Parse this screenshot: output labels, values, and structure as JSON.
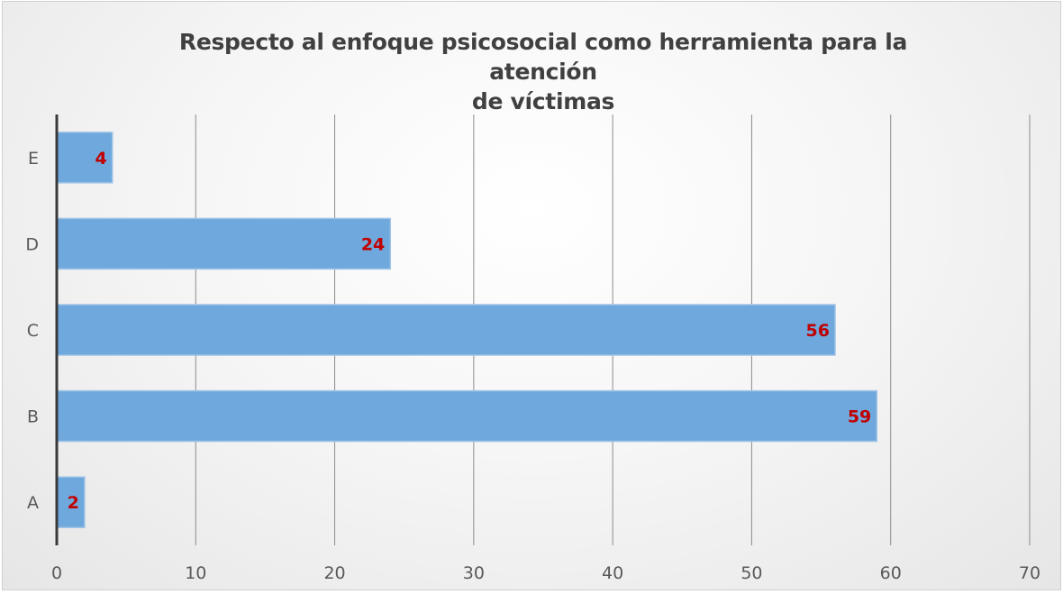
{
  "chart_data": {
    "type": "bar",
    "orientation": "horizontal",
    "title": "Respecto al enfoque psicosocial como herramienta para la atención de víctimas",
    "title_lines": [
      "Respecto al enfoque psicosocial como herramienta para la atención",
      "de víctimas"
    ],
    "categories": [
      "A",
      "B",
      "C",
      "D",
      "E"
    ],
    "values": [
      2,
      59,
      56,
      24,
      4
    ],
    "data_labels": [
      "2",
      "59",
      "56",
      "24",
      "4"
    ],
    "xlim": [
      0,
      70
    ],
    "x_ticks": [
      0,
      10,
      20,
      30,
      40,
      50,
      60,
      70
    ],
    "x_tick_labels": [
      "0",
      "10",
      "20",
      "30",
      "40",
      "50",
      "60",
      "70"
    ],
    "grid": "vertical",
    "legend": "none",
    "bar_color": "#6fa8dc",
    "bar_border_color": "#9dc3e6",
    "label_color": "#c00000"
  }
}
